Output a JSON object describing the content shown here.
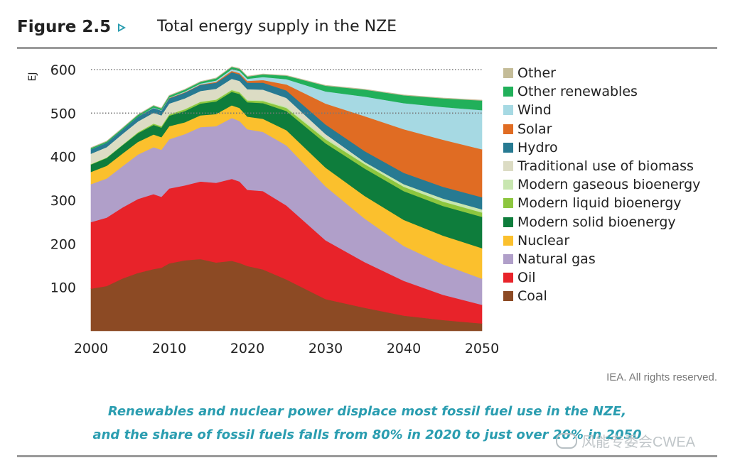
{
  "figure": {
    "number": "Figure 2.5",
    "title": "Total energy supply in the NZE",
    "credit": "IEA. All rights reserved.",
    "caption_line1": "Renewables and nuclear power displace most fossil fuel use in the NZE,",
    "caption_line2": "and the share of fossil fuels falls from 80% in 2020 to just over 20% in 2050",
    "watermark": "风能专委会CWEA",
    "accent_color": "#2a9db0"
  },
  "chart_data": {
    "type": "area",
    "stacked": true,
    "title": "",
    "xlabel": "",
    "ylabel": "EJ",
    "xlim": [
      2000,
      2050
    ],
    "ylim": [
      0,
      600
    ],
    "x_ticks": [
      "2000",
      "2010",
      "2020",
      "2030",
      "2040",
      "2050"
    ],
    "y_ticks": [
      "100",
      "200",
      "300",
      "400",
      "500",
      "600"
    ],
    "reference_lines": [
      500,
      600
    ],
    "legend_position": "right",
    "x": [
      2000,
      2002,
      2004,
      2006,
      2008,
      2009,
      2010,
      2012,
      2014,
      2016,
      2018,
      2019,
      2020,
      2022,
      2025,
      2030,
      2035,
      2040,
      2045,
      2050
    ],
    "series": [
      {
        "name": "Coal",
        "color": "#8c4a24",
        "values": [
          97,
          103,
          120,
          133,
          142,
          145,
          155,
          162,
          165,
          157,
          161,
          156,
          149,
          141,
          118,
          73,
          53,
          35,
          25,
          17
        ]
      },
      {
        "name": "Oil",
        "color": "#e8232a",
        "values": [
          153,
          157,
          163,
          170,
          172,
          163,
          172,
          172,
          178,
          183,
          188,
          187,
          175,
          180,
          170,
          135,
          105,
          80,
          58,
          43
        ]
      },
      {
        "name": "Natural gas",
        "color": "#b09fc9",
        "values": [
          87,
          90,
          95,
          102,
          108,
          108,
          113,
          118,
          125,
          130,
          140,
          139,
          139,
          136,
          138,
          124,
          100,
          80,
          70,
          60
        ]
      },
      {
        "name": "Nuclear",
        "color": "#fbc02d",
        "values": [
          28,
          29,
          29,
          29,
          29,
          29,
          30,
          27,
          27,
          28,
          29,
          30,
          29,
          30,
          35,
          43,
          52,
          60,
          66,
          70
        ]
      },
      {
        "name": "Modern solid bioenergy",
        "color": "#0e7d3c",
        "values": [
          17,
          18,
          19,
          20,
          22,
          22,
          24,
          26,
          27,
          29,
          31,
          32,
          33,
          36,
          44,
          56,
          63,
          66,
          68,
          72
        ]
      },
      {
        "name": "Modern liquid bioenergy",
        "color": "#8dc63f",
        "values": [
          1,
          1,
          1,
          2,
          3,
          3,
          3,
          4,
          4,
          4,
          4,
          4,
          4,
          5,
          7,
          9,
          10,
          10,
          10,
          10
        ]
      },
      {
        "name": "Modern gaseous bioenergy",
        "color": "#c8e6b0",
        "values": [
          1,
          1,
          1,
          1,
          1,
          1,
          1,
          1,
          1,
          1,
          2,
          2,
          2,
          2,
          3,
          4,
          5,
          6,
          7,
          7
        ]
      },
      {
        "name": "Traditional use of biomass",
        "color": "#dcdcc4",
        "values": [
          23,
          23,
          24,
          24,
          24,
          24,
          24,
          24,
          24,
          24,
          24,
          24,
          24,
          24,
          20,
          8,
          0,
          0,
          0,
          0
        ]
      },
      {
        "name": "Hydro",
        "color": "#277a92",
        "values": [
          10,
          10,
          10,
          11,
          11,
          11,
          12,
          13,
          14,
          14,
          15,
          15,
          15,
          16,
          17,
          22,
          25,
          26,
          27,
          28
        ]
      },
      {
        "name": "Solar",
        "color": "#e06c23",
        "values": [
          0,
          0,
          0,
          0,
          0,
          0,
          1,
          1,
          1,
          2,
          3,
          3,
          4,
          6,
          14,
          48,
          80,
          100,
          108,
          110
        ]
      },
      {
        "name": "Wind",
        "color": "#a6d9e3",
        "values": [
          0,
          0,
          0,
          0,
          1,
          1,
          1,
          2,
          2,
          3,
          4,
          5,
          5,
          7,
          12,
          28,
          45,
          60,
          75,
          90
        ]
      },
      {
        "name": "Other renewables",
        "color": "#21b05a",
        "values": [
          3,
          3,
          3,
          4,
          4,
          4,
          4,
          4,
          4,
          5,
          5,
          5,
          5,
          6,
          8,
          13,
          16,
          18,
          20,
          22
        ]
      },
      {
        "name": "Other",
        "color": "#c4bc98",
        "values": [
          1,
          1,
          1,
          1,
          1,
          1,
          1,
          1,
          1,
          1,
          1,
          1,
          1,
          1,
          1,
          1,
          1,
          1,
          1,
          1
        ]
      }
    ]
  }
}
